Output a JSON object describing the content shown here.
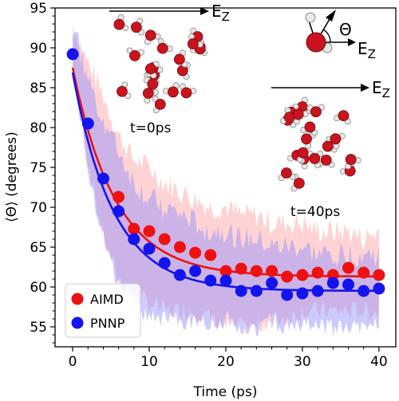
{
  "chart_data": {
    "type": "scatter",
    "xlabel": "Time (ps)",
    "ylabel": "⟨Θ⟩ (degrees)",
    "xlim": [
      -2.3,
      42.2
    ],
    "ylim": [
      52.5,
      95
    ],
    "xticks": [
      "0",
      "10",
      "20",
      "30",
      "40"
    ],
    "yticks": [
      "55",
      "60",
      "65",
      "70",
      "75",
      "80",
      "85",
      "90",
      "95"
    ],
    "grid": false,
    "legend_position": "bottom-left",
    "series": [
      {
        "name": "AIMD",
        "color": "#ee1111",
        "band_color": "#ff9d9d",
        "x": [
          6,
          8,
          10,
          12,
          14,
          16,
          18,
          20,
          22,
          24,
          26,
          28,
          30,
          32,
          34,
          36,
          38,
          40
        ],
        "y": [
          71.3,
          67.3,
          67.0,
          66.0,
          65.0,
          64.3,
          64.0,
          62.0,
          62.3,
          62.0,
          62.0,
          61.3,
          61.5,
          61.8,
          61.5,
          62.4,
          61.8,
          61.5
        ],
        "fit": {
          "form": "exponential",
          "y_inf": 61.3,
          "amplitude": 26.2,
          "tau": 5.6
        },
        "band_upper": [
          93,
          88,
          84,
          79,
          76,
          75,
          73,
          72,
          71,
          70,
          70,
          69,
          69,
          68,
          68,
          68,
          67,
          67,
          67,
          66,
          67
        ],
        "band_lower": [
          88,
          76,
          66,
          61,
          59,
          58,
          57,
          57,
          57,
          56,
          55,
          55,
          55,
          56,
          56,
          57,
          57,
          57,
          57,
          57,
          57
        ]
      },
      {
        "name": "PNNP",
        "color": "#1414ee",
        "band_color": "#8c8cff",
        "x": [
          0,
          2,
          4,
          6,
          8,
          10,
          12,
          14,
          16,
          18,
          20,
          22,
          24,
          26,
          28,
          30,
          32,
          34,
          36,
          38,
          40
        ],
        "y": [
          89.2,
          80.5,
          73.6,
          69.5,
          66.0,
          64.8,
          63.0,
          61.5,
          62.0,
          60.8,
          60.8,
          59.5,
          59.5,
          60.5,
          59.0,
          59.2,
          59.5,
          60.5,
          60.3,
          59.5,
          59.8
        ],
        "fit": {
          "form": "exponential",
          "y_inf": 59.5,
          "amplitude": 27.4,
          "tau": 5.3
        },
        "band_upper": [
          93,
          86,
          81,
          77,
          73,
          71,
          70,
          69,
          68,
          67,
          67,
          66,
          66,
          65,
          65,
          65,
          64,
          64,
          64,
          64,
          64
        ],
        "band_lower": [
          88,
          75,
          66,
          60,
          58,
          56,
          56,
          56,
          55,
          56,
          56,
          55,
          55,
          56,
          55,
          55,
          55,
          55,
          55,
          55,
          56
        ]
      }
    ],
    "annotations": {
      "inset_t0_label": "t=0ps",
      "inset_t40_label": "t=40ps",
      "field_label": "E",
      "field_subscript": "Z",
      "angle_label": "Θ"
    }
  }
}
